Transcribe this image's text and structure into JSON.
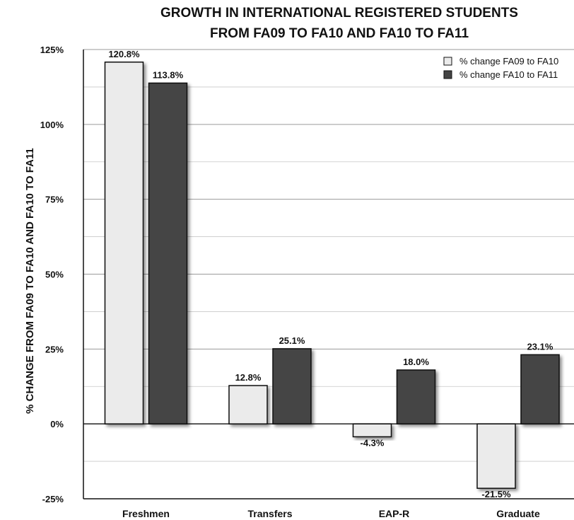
{
  "chart_data": {
    "type": "bar",
    "title": "GROWTH IN INTERNATIONAL REGISTERED STUDENTS",
    "subtitle": "FROM FA09 TO FA10 AND FA10 TO FA11",
    "ylabel": "% CHANGE FROM FA09 TO FA10 AND FA10 TO FA11",
    "xlabel": "",
    "categories": [
      "Freshmen",
      "Transfers",
      "EAP-R",
      "Graduate"
    ],
    "series": [
      {
        "name": "% change FA09 to FA10",
        "values": [
          120.8,
          12.8,
          -4.3,
          -21.5
        ],
        "labels": [
          "120.8%",
          "12.8%",
          "-4.3%",
          "-21.5%"
        ],
        "color": "#ebebeb"
      },
      {
        "name": "% change FA10 to FA11",
        "values": [
          113.8,
          25.1,
          18.0,
          23.1
        ],
        "labels": [
          "113.8%",
          "25.1%",
          "18.0%",
          "23.1%"
        ],
        "color": "#444444"
      }
    ],
    "ylim": [
      -25,
      125
    ],
    "yticks": [
      -25,
      0,
      25,
      50,
      75,
      100,
      125
    ],
    "ytick_labels": [
      "-25%",
      "0%",
      "25%",
      "50%",
      "75%",
      "100%",
      "125%"
    ],
    "grid": true,
    "legend_position": "top-right"
  }
}
